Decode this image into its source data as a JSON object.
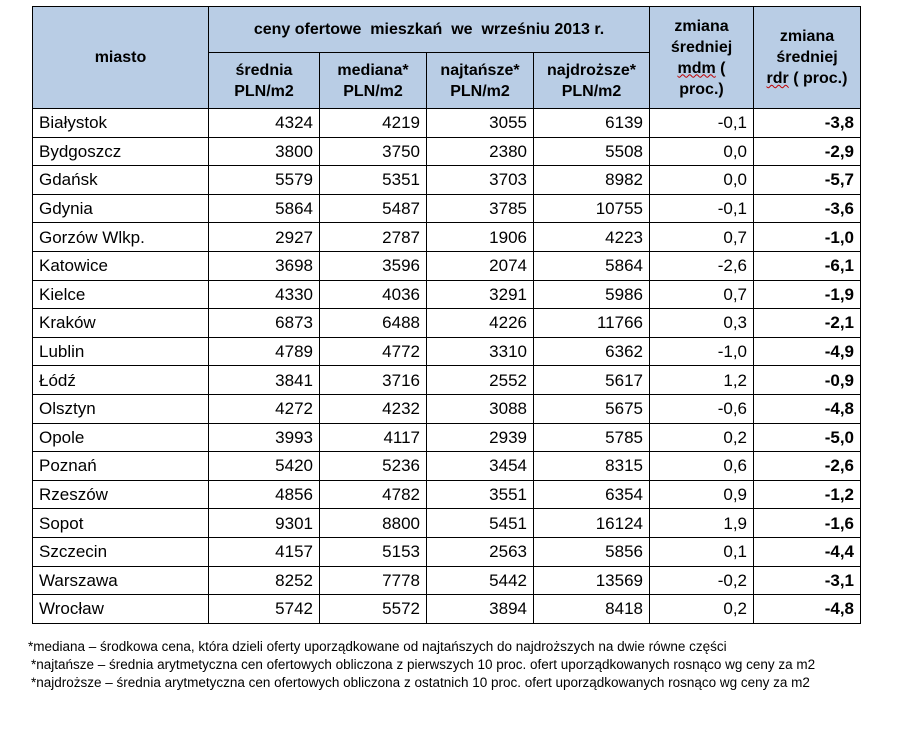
{
  "table": {
    "header": {
      "city": "miasto",
      "group": "ceny ofertowe  mieszkań  we  wrześniu 2013 r.",
      "avg": [
        "średnia",
        "PLN/m2"
      ],
      "median": [
        "mediana*",
        "PLN/m2"
      ],
      "cheapest": [
        "najtańsze*",
        "PLN/m2"
      ],
      "priciest": [
        "najdroższe*",
        "PLN/m2"
      ],
      "mdm": [
        "zmiana",
        "średniej",
        "mdm",
        "(",
        "proc.)"
      ],
      "rdr": [
        "zmiana",
        "średniej",
        "rdr",
        "( proc.)"
      ]
    },
    "rows": [
      {
        "city": "Białystok",
        "avg": "4324",
        "median": "4219",
        "cheapest": "3055",
        "priciest": "6139",
        "mdm": "-0,1",
        "rdr": "-3,8"
      },
      {
        "city": "Bydgoszcz",
        "avg": "3800",
        "median": "3750",
        "cheapest": "2380",
        "priciest": "5508",
        "mdm": "0,0",
        "rdr": "-2,9"
      },
      {
        "city": "Gdańsk",
        "avg": "5579",
        "median": "5351",
        "cheapest": "3703",
        "priciest": "8982",
        "mdm": "0,0",
        "rdr": "-5,7"
      },
      {
        "city": "Gdynia",
        "avg": "5864",
        "median": "5487",
        "cheapest": "3785",
        "priciest": "10755",
        "mdm": "-0,1",
        "rdr": "-3,6"
      },
      {
        "city": "Gorzów Wlkp.",
        "avg": "2927",
        "median": "2787",
        "cheapest": "1906",
        "priciest": "4223",
        "mdm": "0,7",
        "rdr": "-1,0"
      },
      {
        "city": "Katowice",
        "avg": "3698",
        "median": "3596",
        "cheapest": "2074",
        "priciest": "5864",
        "mdm": "-2,6",
        "rdr": "-6,1"
      },
      {
        "city": "Kielce",
        "avg": "4330",
        "median": "4036",
        "cheapest": "3291",
        "priciest": "5986",
        "mdm": "0,7",
        "rdr": "-1,9"
      },
      {
        "city": "Kraków",
        "avg": "6873",
        "median": "6488",
        "cheapest": "4226",
        "priciest": "11766",
        "mdm": "0,3",
        "rdr": "-2,1"
      },
      {
        "city": "Lublin",
        "avg": "4789",
        "median": "4772",
        "cheapest": "3310",
        "priciest": "6362",
        "mdm": "-1,0",
        "rdr": "-4,9"
      },
      {
        "city": "Łódź",
        "avg": "3841",
        "median": "3716",
        "cheapest": "2552",
        "priciest": "5617",
        "mdm": "1,2",
        "rdr": "-0,9"
      },
      {
        "city": "Olsztyn",
        "avg": "4272",
        "median": "4232",
        "cheapest": "3088",
        "priciest": "5675",
        "mdm": "-0,6",
        "rdr": "-4,8"
      },
      {
        "city": "Opole",
        "avg": "3993",
        "median": "4117",
        "cheapest": "2939",
        "priciest": "5785",
        "mdm": "0,2",
        "rdr": "-5,0"
      },
      {
        "city": "Poznań",
        "avg": "5420",
        "median": "5236",
        "cheapest": "3454",
        "priciest": "8315",
        "mdm": "0,6",
        "rdr": "-2,6"
      },
      {
        "city": "Rzeszów",
        "avg": "4856",
        "median": "4782",
        "cheapest": "3551",
        "priciest": "6354",
        "mdm": "0,9",
        "rdr": "-1,2"
      },
      {
        "city": "Sopot",
        "avg": "9301",
        "median": "8800",
        "cheapest": "5451",
        "priciest": "16124",
        "mdm": "1,9",
        "rdr": "-1,6"
      },
      {
        "city": "Szczecin",
        "avg": "4157",
        "median": "5153",
        "cheapest": "2563",
        "priciest": "5856",
        "mdm": "0,1",
        "rdr": "-4,4"
      },
      {
        "city": "Warszawa",
        "avg": "8252",
        "median": "7778",
        "cheapest": "5442",
        "priciest": "13569",
        "mdm": "-0,2",
        "rdr": "-3,1"
      },
      {
        "city": "Wrocław",
        "avg": "5742",
        "median": "5572",
        "cheapest": "3894",
        "priciest": "8418",
        "mdm": "0,2",
        "rdr": "-4,8"
      }
    ]
  },
  "notes": [
    "*mediana – środkowa cena, która dzieli oferty uporządkowane od najtańszych do najdroższych na dwie równe części",
    "*najtańsze – średnia arytmetyczna cen ofertowych obliczona z pierwszych 10 proc. ofert uporządkowanych rosnąco wg ceny za m2",
    "*najdroższe – średnia arytmetyczna cen ofertowych obliczona z ostatnich 10 proc. ofert uporządkowanych rosnąco wg ceny za m2"
  ],
  "colors": {
    "header_bg": "#b9cde5"
  }
}
